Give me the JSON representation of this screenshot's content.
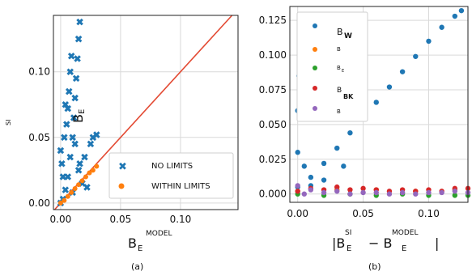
{
  "colors": {
    "blue": "#1f77b4",
    "orange": "#ff7f0e",
    "green": "#2ca02c",
    "red": "#d62728",
    "purple": "#9467bd",
    "diagonal": "#e34a33",
    "grid": "#d9d9d9",
    "frame": "#222222"
  },
  "chart_data": [
    {
      "panel_label": "(a)",
      "type": "scatter",
      "xlabel_main": "B",
      "xlabel_sub": "E",
      "xlabel_sup": "MODEL",
      "ylabel_sup": "SI",
      "ylabel_main": "B",
      "ylabel_sub": "E",
      "xticks": [
        "0.00",
        "0.05",
        "0.10"
      ],
      "yticks": [
        "0.00",
        "0.05",
        "0.10"
      ],
      "xlim": [
        -0.006,
        0.148
      ],
      "ylim": [
        -0.005,
        0.143
      ],
      "grid": true,
      "legend_position": "lower-right",
      "legend": [
        "NO LIMITS",
        "WITHIN LIMITS"
      ],
      "reference_line": "y = x",
      "series": [
        {
          "name": "NO LIMITS",
          "color_key": "blue",
          "marker": "x",
          "points": [
            [
              0.0,
              0.0
            ],
            [
              0.002,
              0.003
            ],
            [
              0.004,
              0.01
            ],
            [
              0.006,
              0.02
            ],
            [
              0.008,
              0.035
            ],
            [
              0.01,
              0.05
            ],
            [
              0.011,
              0.065
            ],
            [
              0.012,
              0.08
            ],
            [
              0.013,
              0.095
            ],
            [
              0.014,
              0.11
            ],
            [
              0.015,
              0.125
            ],
            [
              0.016,
              0.138
            ],
            [
              0.005,
              0.06
            ],
            [
              0.006,
              0.072
            ],
            [
              0.007,
              0.085
            ],
            [
              0.008,
              0.1
            ],
            [
              0.009,
              0.112
            ],
            [
              0.0,
              0.04
            ],
            [
              0.001,
              0.03
            ],
            [
              0.002,
              0.02
            ],
            [
              0.015,
              0.025
            ],
            [
              0.02,
              0.035
            ],
            [
              0.025,
              0.045
            ],
            [
              0.03,
              0.052
            ],
            [
              0.018,
              0.015
            ],
            [
              0.022,
              0.012
            ],
            [
              0.01,
              0.008
            ],
            [
              0.003,
              0.05
            ],
            [
              0.004,
              0.075
            ],
            [
              0.012,
              0.045
            ],
            [
              0.016,
              0.03
            ],
            [
              0.027,
              0.05
            ]
          ]
        },
        {
          "name": "WITHIN LIMITS",
          "color_key": "orange",
          "marker": "o",
          "points": [
            [
              0.0,
              0.0
            ],
            [
              0.003,
              0.002
            ],
            [
              0.006,
              0.005
            ],
            [
              0.009,
              0.008
            ],
            [
              0.012,
              0.011
            ],
            [
              0.015,
              0.014
            ],
            [
              0.018,
              0.017
            ],
            [
              0.021,
              0.02
            ],
            [
              0.024,
              0.023
            ],
            [
              0.027,
              0.025
            ],
            [
              0.03,
              0.028
            ]
          ]
        }
      ]
    },
    {
      "panel_label": "(b)",
      "type": "scatter",
      "xlabel_main_a": "|B",
      "xlabel_sub_a": "E",
      "xlabel_sup_a": "SI",
      "xlabel_mid": "− B",
      "xlabel_sub_b": "E",
      "xlabel_sup_b": "MODEL",
      "xlabel_end": "|",
      "xticks": [
        "0.00",
        "0.05",
        "0.10"
      ],
      "yticks": [
        "0.000",
        "0.025",
        "0.050",
        "0.075",
        "0.100",
        "0.125"
      ],
      "xlim": [
        -0.006,
        0.13
      ],
      "ylim": [
        -0.006,
        0.135
      ],
      "grid": true,
      "legend_position": "upper-left",
      "legend": [
        {
          "main": "B",
          "sub": "W",
          "color_key": "blue"
        },
        {
          "main": "",
          "sub": "B",
          "color_key": "orange"
        },
        {
          "main": "B",
          "sub": "E",
          "color_key": "green"
        },
        {
          "main": "B",
          "sub": "BK",
          "color_key": "red"
        },
        {
          "main": "",
          "sub": "B",
          "color_key": "purple"
        }
      ],
      "series": [
        {
          "color_key": "blue",
          "points": [
            [
              0.0,
              0.005
            ],
            [
              0.01,
              0.012
            ],
            [
              0.02,
              0.022
            ],
            [
              0.03,
              0.033
            ],
            [
              0.04,
              0.044
            ],
            [
              0.05,
              0.055
            ],
            [
              0.06,
              0.066
            ],
            [
              0.07,
              0.077
            ],
            [
              0.08,
              0.088
            ],
            [
              0.09,
              0.099
            ],
            [
              0.1,
              0.11
            ],
            [
              0.11,
              0.12
            ],
            [
              0.12,
              0.128
            ],
            [
              0.125,
              0.132
            ],
            [
              0.0,
              0.03
            ],
            [
              0.0,
              0.06
            ],
            [
              0.001,
              0.085
            ],
            [
              0.002,
              0.1
            ],
            [
              0.003,
              0.122
            ],
            [
              0.004,
              0.128
            ],
            [
              0.005,
              0.02
            ],
            [
              0.01,
              0.006
            ],
            [
              0.02,
              0.01
            ],
            [
              0.035,
              0.02
            ]
          ]
        },
        {
          "color_key": "orange",
          "points": [
            [
              0.0,
              0.002
            ],
            [
              0.03,
              0.003
            ],
            [
              0.06,
              0.003
            ],
            [
              0.09,
              0.002
            ],
            [
              0.12,
              0.003
            ]
          ]
        },
        {
          "color_key": "green",
          "points": [
            [
              0.0,
              0.0
            ],
            [
              0.02,
              -0.001
            ],
            [
              0.04,
              0.0
            ],
            [
              0.06,
              -0.001
            ],
            [
              0.08,
              0.0
            ],
            [
              0.1,
              -0.001
            ],
            [
              0.12,
              -0.001
            ],
            [
              0.13,
              -0.001
            ]
          ]
        },
        {
          "color_key": "red",
          "points": [
            [
              0.0,
              0.002
            ],
            [
              0.01,
              0.004
            ],
            [
              0.02,
              0.003
            ],
            [
              0.03,
              0.005
            ],
            [
              0.04,
              0.003
            ],
            [
              0.05,
              0.004
            ],
            [
              0.06,
              0.003
            ],
            [
              0.07,
              0.002
            ],
            [
              0.08,
              0.003
            ],
            [
              0.09,
              0.002
            ],
            [
              0.1,
              0.003
            ],
            [
              0.11,
              0.002
            ],
            [
              0.12,
              0.004
            ],
            [
              0.13,
              0.004
            ]
          ]
        },
        {
          "color_key": "purple",
          "points": [
            [
              0.0,
              0.006
            ],
            [
              0.005,
              0.0
            ],
            [
              0.01,
              0.003
            ],
            [
              0.02,
              0.001
            ],
            [
              0.03,
              0.002
            ],
            [
              0.04,
              0.0
            ],
            [
              0.05,
              0.001
            ],
            [
              0.06,
              0.001
            ],
            [
              0.07,
              0.0
            ],
            [
              0.08,
              0.001
            ],
            [
              0.09,
              0.0
            ],
            [
              0.1,
              0.001
            ],
            [
              0.11,
              0.001
            ],
            [
              0.12,
              0.002
            ],
            [
              0.13,
              0.001
            ]
          ]
        }
      ]
    }
  ]
}
